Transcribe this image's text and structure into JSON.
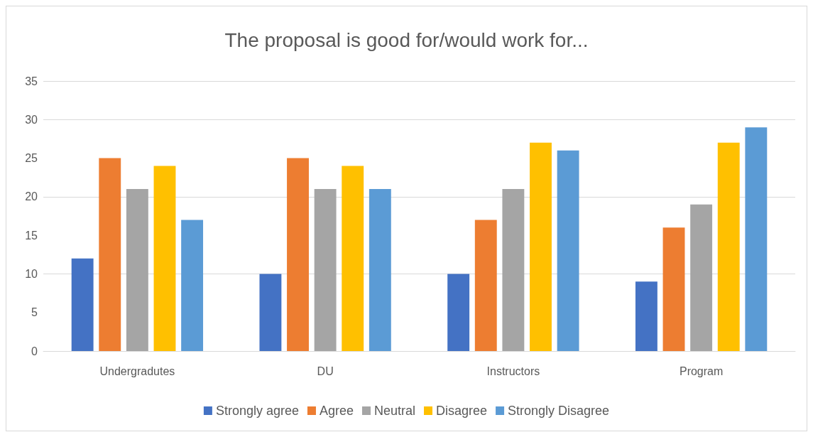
{
  "chart_data": {
    "type": "bar",
    "title": "The proposal is good for/would work for...",
    "categories": [
      "Undergradutes",
      "DU",
      "Instructors",
      "Program"
    ],
    "series": [
      {
        "name": "Strongly agree",
        "color": "#4472c4",
        "values": [
          12,
          10,
          10,
          9
        ]
      },
      {
        "name": "Agree",
        "color": "#ed7d31",
        "values": [
          25,
          25,
          17,
          16
        ]
      },
      {
        "name": "Neutral",
        "color": "#a5a5a5",
        "values": [
          21,
          21,
          21,
          19
        ]
      },
      {
        "name": "Disagree",
        "color": "#ffc000",
        "values": [
          24,
          24,
          27,
          27
        ]
      },
      {
        "name": "Strongly Disagree",
        "color": "#5b9bd5",
        "values": [
          17,
          21,
          26,
          29
        ]
      }
    ],
    "ylim": [
      0,
      35
    ],
    "yticks": [
      0,
      5,
      10,
      15,
      20,
      25,
      30,
      35
    ],
    "grid": "y",
    "legend": "bottom"
  }
}
